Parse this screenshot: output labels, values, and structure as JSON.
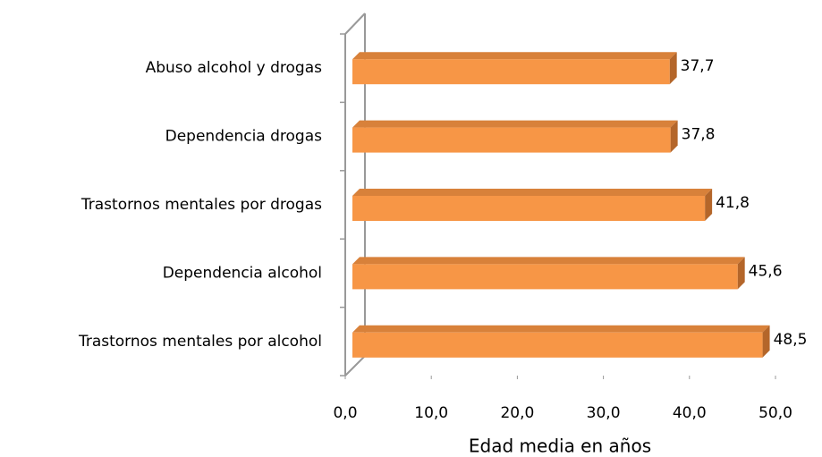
{
  "chart_data": {
    "type": "bar",
    "orientation": "horizontal",
    "three_d": true,
    "x_label": "Edad media en años",
    "categories": [
      "Abuso alcohol y drogas",
      "Dependencia drogas",
      "Trastornos mentales por drogas",
      "Dependencia alcohol",
      "Trastornos mentales por alcohol"
    ],
    "values": [
      37.7,
      37.8,
      41.8,
      45.6,
      48.5
    ],
    "value_labels": [
      "37,7",
      "37,8",
      "41,8",
      "45,6",
      "48,5"
    ],
    "color": "#f79646",
    "xlim": [
      0,
      50
    ],
    "xticks": [
      {
        "value": 0,
        "label": "0,0"
      },
      {
        "value": 10,
        "label": "10,0"
      },
      {
        "value": 20,
        "label": "20,0"
      },
      {
        "value": 30,
        "label": "30,0"
      },
      {
        "value": 40,
        "label": "40,0"
      },
      {
        "value": 50,
        "label": "50,0"
      }
    ],
    "grid": false
  }
}
